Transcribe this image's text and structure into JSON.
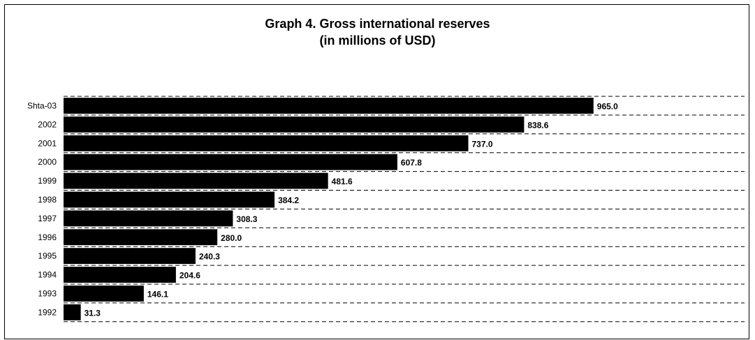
{
  "chart_data": {
    "type": "bar",
    "orientation": "horizontal",
    "title": "Graph 4. Gross international reserves",
    "subtitle": "(in millions of USD)",
    "categories": [
      "Shta-03",
      "2002",
      "2001",
      "2000",
      "1999",
      "1998",
      "1997",
      "1996",
      "1995",
      "1994",
      "1993",
      "1992"
    ],
    "values": [
      965.0,
      838.6,
      737.0,
      607.8,
      481.6,
      384.2,
      308.3,
      280.0,
      240.3,
      204.6,
      146.1,
      31.3
    ],
    "value_labels": [
      "965.0",
      "838.6",
      "737.0",
      "607.8",
      "481.6",
      "384.2",
      "308.3",
      "280.0",
      "240.3",
      "204.6",
      "146.1",
      "31.3"
    ],
    "xlim": [
      0,
      1240
    ],
    "grid": "dashed horizontal",
    "legend": "none",
    "bar_color": "#000000",
    "grid_color": "#000000"
  }
}
